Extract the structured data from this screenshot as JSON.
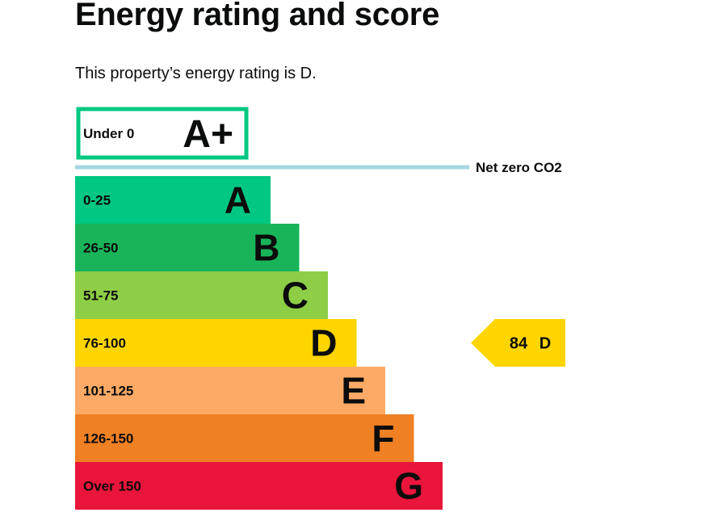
{
  "page": {
    "title": "Energy rating and score",
    "summary": "This property’s energy rating is D."
  },
  "chart_data": {
    "type": "bar",
    "bands": [
      {
        "letter": "A+",
        "range": "Under 0",
        "color": "#00c781",
        "style": "outline"
      },
      {
        "letter": "A",
        "range": "0-25",
        "color": "#00c781"
      },
      {
        "letter": "B",
        "range": "26-50",
        "color": "#19b459"
      },
      {
        "letter": "C",
        "range": "51-75",
        "color": "#8dce46"
      },
      {
        "letter": "D",
        "range": "76-100",
        "color": "#ffd500"
      },
      {
        "letter": "E",
        "range": "101-125",
        "color": "#fcaa65"
      },
      {
        "letter": "F",
        "range": "126-150",
        "color": "#ef8023"
      },
      {
        "letter": "G",
        "range": "Over 150",
        "color": "#e9153b"
      }
    ],
    "net_zero": {
      "label": "Net zero CO2",
      "color": "#a6d7e1"
    },
    "current": {
      "score": "84",
      "letter": "D",
      "band": "D",
      "color": "#ffd500"
    }
  }
}
